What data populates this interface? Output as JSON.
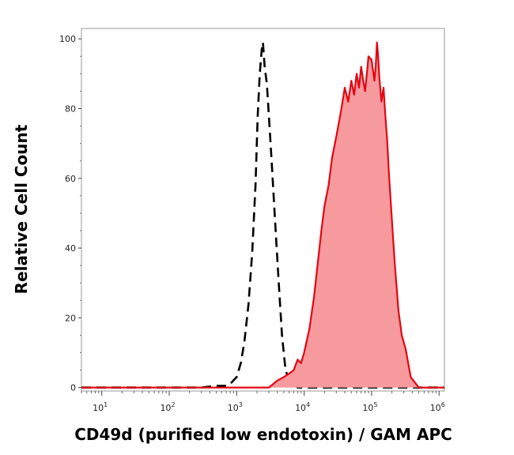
{
  "chart_data": {
    "type": "area",
    "title": "",
    "xlabel": "CD49d (purified low endotoxin) / GAM APC",
    "ylabel": "Relative Cell Count",
    "x_scale": "log",
    "xlim": [
      5,
      1200000
    ],
    "ylim": [
      -1,
      103
    ],
    "grid": false,
    "legend": "none",
    "x_ticks": [
      {
        "value": 10,
        "base": "10",
        "exp": "1"
      },
      {
        "value": 100,
        "base": "10",
        "exp": "2"
      },
      {
        "value": 1000,
        "base": "10",
        "exp": "3"
      },
      {
        "value": 10000,
        "base": "10",
        "exp": "4"
      },
      {
        "value": 100000,
        "base": "10",
        "exp": "5"
      },
      {
        "value": 1000000,
        "base": "10",
        "exp": "6"
      }
    ],
    "y_ticks": [
      {
        "value": 0,
        "label": "0"
      },
      {
        "value": 20,
        "label": "20"
      },
      {
        "value": 40,
        "label": "40"
      },
      {
        "value": 60,
        "label": "60"
      },
      {
        "value": 80,
        "label": "80"
      },
      {
        "value": 100,
        "label": "100"
      }
    ],
    "series": [
      {
        "style": "dashed-outline",
        "color": "#000000",
        "x": [
          5,
          100,
          300,
          500,
          700,
          800,
          1000,
          1150,
          1300,
          1500,
          1700,
          1900,
          2050,
          2200,
          2350,
          2450,
          2600,
          2800,
          3000,
          3300,
          3700,
          4200,
          4700,
          5300,
          6000,
          8000,
          100000,
          1200000
        ],
        "y": [
          0,
          0,
          0,
          0.5,
          0.5,
          1,
          3,
          7,
          13,
          24,
          39,
          58,
          78,
          90,
          97,
          99,
          92,
          87,
          78,
          65,
          48,
          30,
          15,
          5,
          2,
          0,
          0,
          0
        ]
      },
      {
        "style": "filled",
        "color": "#e30613",
        "fill": "#f79a9d",
        "x": [
          5,
          3000,
          4000,
          5000,
          6000,
          7000,
          8000,
          9000,
          10000,
          12000,
          14000,
          16000,
          18000,
          20000,
          23000,
          26000,
          30000,
          35000,
          40000,
          45000,
          50000,
          55000,
          60000,
          65000,
          70000,
          75000,
          80000,
          85000,
          90000,
          100000,
          110000,
          115000,
          120000,
          125000,
          130000,
          140000,
          150000,
          160000,
          170000,
          180000,
          200000,
          220000,
          250000,
          280000,
          320000,
          380000,
          500000,
          1200000
        ],
        "y": [
          0,
          0,
          2,
          3,
          4,
          5,
          8,
          7,
          10,
          17,
          26,
          36,
          45,
          52,
          58,
          66,
          72,
          79,
          86,
          82,
          88,
          84,
          90,
          86,
          92,
          88,
          85,
          90,
          95,
          94,
          88,
          92,
          99,
          95,
          89,
          82,
          86,
          78,
          71,
          62,
          48,
          36,
          22,
          15,
          11,
          3,
          0,
          0
        ]
      }
    ]
  }
}
